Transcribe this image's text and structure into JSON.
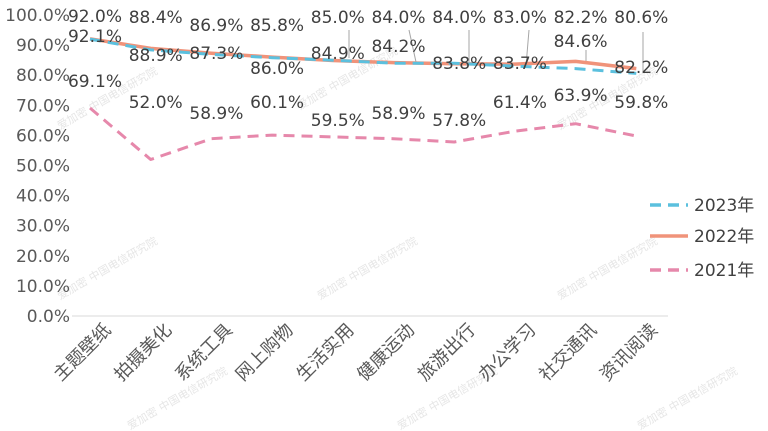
{
  "chart_data": {
    "type": "line",
    "categories": [
      "主题壁纸",
      "拍摄美化",
      "系统工具",
      "网上购物",
      "生活实用",
      "健康运动",
      "旅游出行",
      "办公学习",
      "社交通讯",
      "资讯阅读"
    ],
    "ylim": [
      0,
      100
    ],
    "yticks": [
      "0.0%",
      "10.0%",
      "20.0%",
      "30.0%",
      "40.0%",
      "50.0%",
      "60.0%",
      "70.0%",
      "80.0%",
      "90.0%",
      "100.0%"
    ],
    "grid": false,
    "legend_position": "right",
    "series": [
      {
        "name": "2023年",
        "values": [
          92.0,
          88.4,
          86.9,
          85.8,
          85.0,
          84.0,
          84.0,
          83.0,
          82.2,
          80.6
        ],
        "labels": [
          "92.0%",
          "88.4%",
          "86.9%",
          "85.8%",
          "85.0%",
          "84.0%",
          "84.0%",
          "83.0%",
          "82.2%",
          "80.6%"
        ],
        "color": "#5bc0de",
        "dash": true
      },
      {
        "name": "2022年",
        "values": [
          92.1,
          88.9,
          87.3,
          86.0,
          84.9,
          84.2,
          83.8,
          83.7,
          84.6,
          82.2
        ],
        "labels": [
          "92.1%",
          "88.9%",
          "87.3%",
          "86.0%",
          "84.9%",
          "84.2%",
          "83.8%",
          "83.7%",
          "84.6%",
          "82.2%"
        ],
        "color": "#f0937a",
        "dash": false
      },
      {
        "name": "2021年",
        "values": [
          69.1,
          52.0,
          58.9,
          60.1,
          59.5,
          58.9,
          57.8,
          61.4,
          63.9,
          59.8
        ],
        "labels": [
          "69.1%",
          "52.0%",
          "58.9%",
          "60.1%",
          "59.5%",
          "58.9%",
          "57.8%",
          "61.4%",
          "63.9%",
          "59.8%"
        ],
        "color": "#e688ab",
        "dash": true
      }
    ],
    "watermark": "爱加密 中国电信研究院"
  }
}
